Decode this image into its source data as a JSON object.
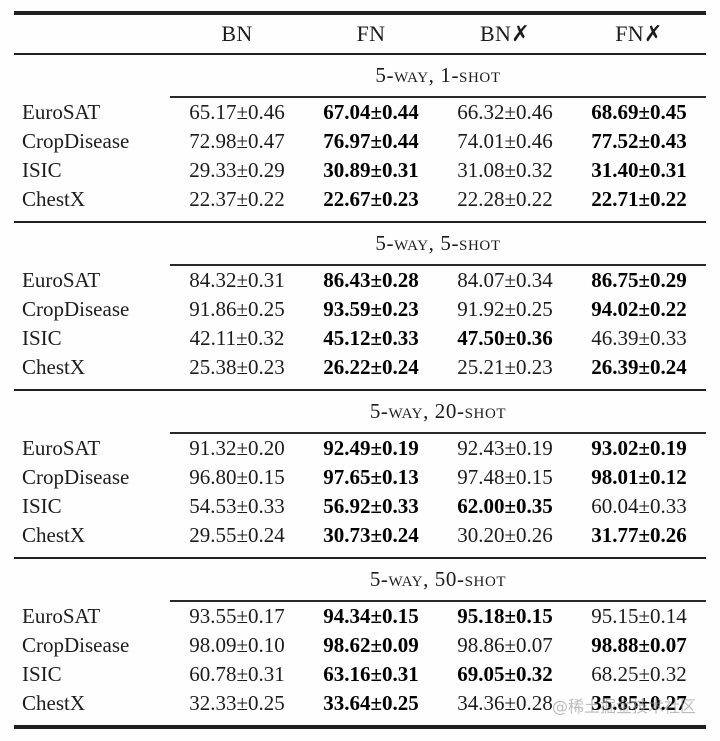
{
  "watermark": "@稀土掘金技术社区",
  "table": {
    "columns": [
      "BN",
      "FN",
      "BN✗",
      "FN✗"
    ],
    "sections": [
      {
        "title": "5-way, 1-shot",
        "rows": [
          {
            "label": "EuroSAT",
            "cells": [
              {
                "v": "65.17±0.46",
                "b": false
              },
              {
                "v": "67.04±0.44",
                "b": true
              },
              {
                "v": "66.32±0.46",
                "b": false
              },
              {
                "v": "68.69±0.45",
                "b": true
              }
            ]
          },
          {
            "label": "CropDisease",
            "cells": [
              {
                "v": "72.98±0.47",
                "b": false
              },
              {
                "v": "76.97±0.44",
                "b": true
              },
              {
                "v": "74.01±0.46",
                "b": false
              },
              {
                "v": "77.52±0.43",
                "b": true
              }
            ]
          },
          {
            "label": "ISIC",
            "cells": [
              {
                "v": "29.33±0.29",
                "b": false
              },
              {
                "v": "30.89±0.31",
                "b": true
              },
              {
                "v": "31.08±0.32",
                "b": false
              },
              {
                "v": "31.40±0.31",
                "b": true
              }
            ]
          },
          {
            "label": "ChestX",
            "cells": [
              {
                "v": "22.37±0.22",
                "b": false
              },
              {
                "v": "22.67±0.23",
                "b": true
              },
              {
                "v": "22.28±0.22",
                "b": false
              },
              {
                "v": "22.71±0.22",
                "b": true
              }
            ]
          }
        ]
      },
      {
        "title": "5-way, 5-shot",
        "rows": [
          {
            "label": "EuroSAT",
            "cells": [
              {
                "v": "84.32±0.31",
                "b": false
              },
              {
                "v": "86.43±0.28",
                "b": true
              },
              {
                "v": "84.07±0.34",
                "b": false
              },
              {
                "v": "86.75±0.29",
                "b": true
              }
            ]
          },
          {
            "label": "CropDisease",
            "cells": [
              {
                "v": "91.86±0.25",
                "b": false
              },
              {
                "v": "93.59±0.23",
                "b": true
              },
              {
                "v": "91.92±0.25",
                "b": false
              },
              {
                "v": "94.02±0.22",
                "b": true
              }
            ]
          },
          {
            "label": "ISIC",
            "cells": [
              {
                "v": "42.11±0.32",
                "b": false
              },
              {
                "v": "45.12±0.33",
                "b": true
              },
              {
                "v": "47.50±0.36",
                "b": true
              },
              {
                "v": "46.39±0.33",
                "b": false
              }
            ]
          },
          {
            "label": "ChestX",
            "cells": [
              {
                "v": "25.38±0.23",
                "b": false
              },
              {
                "v": "26.22±0.24",
                "b": true
              },
              {
                "v": "25.21±0.23",
                "b": false
              },
              {
                "v": "26.39±0.24",
                "b": true
              }
            ]
          }
        ]
      },
      {
        "title": "5-way, 20-shot",
        "rows": [
          {
            "label": "EuroSAT",
            "cells": [
              {
                "v": "91.32±0.20",
                "b": false
              },
              {
                "v": "92.49±0.19",
                "b": true
              },
              {
                "v": "92.43±0.19",
                "b": false
              },
              {
                "v": "93.02±0.19",
                "b": true
              }
            ]
          },
          {
            "label": "CropDisease",
            "cells": [
              {
                "v": "96.80±0.15",
                "b": false
              },
              {
                "v": "97.65±0.13",
                "b": true
              },
              {
                "v": "97.48±0.15",
                "b": false
              },
              {
                "v": "98.01±0.12",
                "b": true
              }
            ]
          },
          {
            "label": "ISIC",
            "cells": [
              {
                "v": "54.53±0.33",
                "b": false
              },
              {
                "v": "56.92±0.33",
                "b": true
              },
              {
                "v": "62.00±0.35",
                "b": true
              },
              {
                "v": "60.04±0.33",
                "b": false
              }
            ]
          },
          {
            "label": "ChestX",
            "cells": [
              {
                "v": "29.55±0.24",
                "b": false
              },
              {
                "v": "30.73±0.24",
                "b": true
              },
              {
                "v": "30.20±0.26",
                "b": false
              },
              {
                "v": "31.77±0.26",
                "b": true
              }
            ]
          }
        ]
      },
      {
        "title": "5-way, 50-shot",
        "rows": [
          {
            "label": "EuroSAT",
            "cells": [
              {
                "v": "93.55±0.17",
                "b": false
              },
              {
                "v": "94.34±0.15",
                "b": true
              },
              {
                "v": "95.18±0.15",
                "b": true
              },
              {
                "v": "95.15±0.14",
                "b": false
              }
            ]
          },
          {
            "label": "CropDisease",
            "cells": [
              {
                "v": "98.09±0.10",
                "b": false
              },
              {
                "v": "98.62±0.09",
                "b": true
              },
              {
                "v": "98.86±0.07",
                "b": false
              },
              {
                "v": "98.88±0.07",
                "b": true
              }
            ]
          },
          {
            "label": "ISIC",
            "cells": [
              {
                "v": "60.78±0.31",
                "b": false
              },
              {
                "v": "63.16±0.31",
                "b": true
              },
              {
                "v": "69.05±0.32",
                "b": true
              },
              {
                "v": "68.25±0.32",
                "b": false
              }
            ]
          },
          {
            "label": "ChestX",
            "cells": [
              {
                "v": "32.33±0.25",
                "b": false
              },
              {
                "v": "33.64±0.25",
                "b": true
              },
              {
                "v": "34.36±0.28",
                "b": false
              },
              {
                "v": "35.85±0.27",
                "b": true
              }
            ]
          }
        ]
      }
    ]
  }
}
